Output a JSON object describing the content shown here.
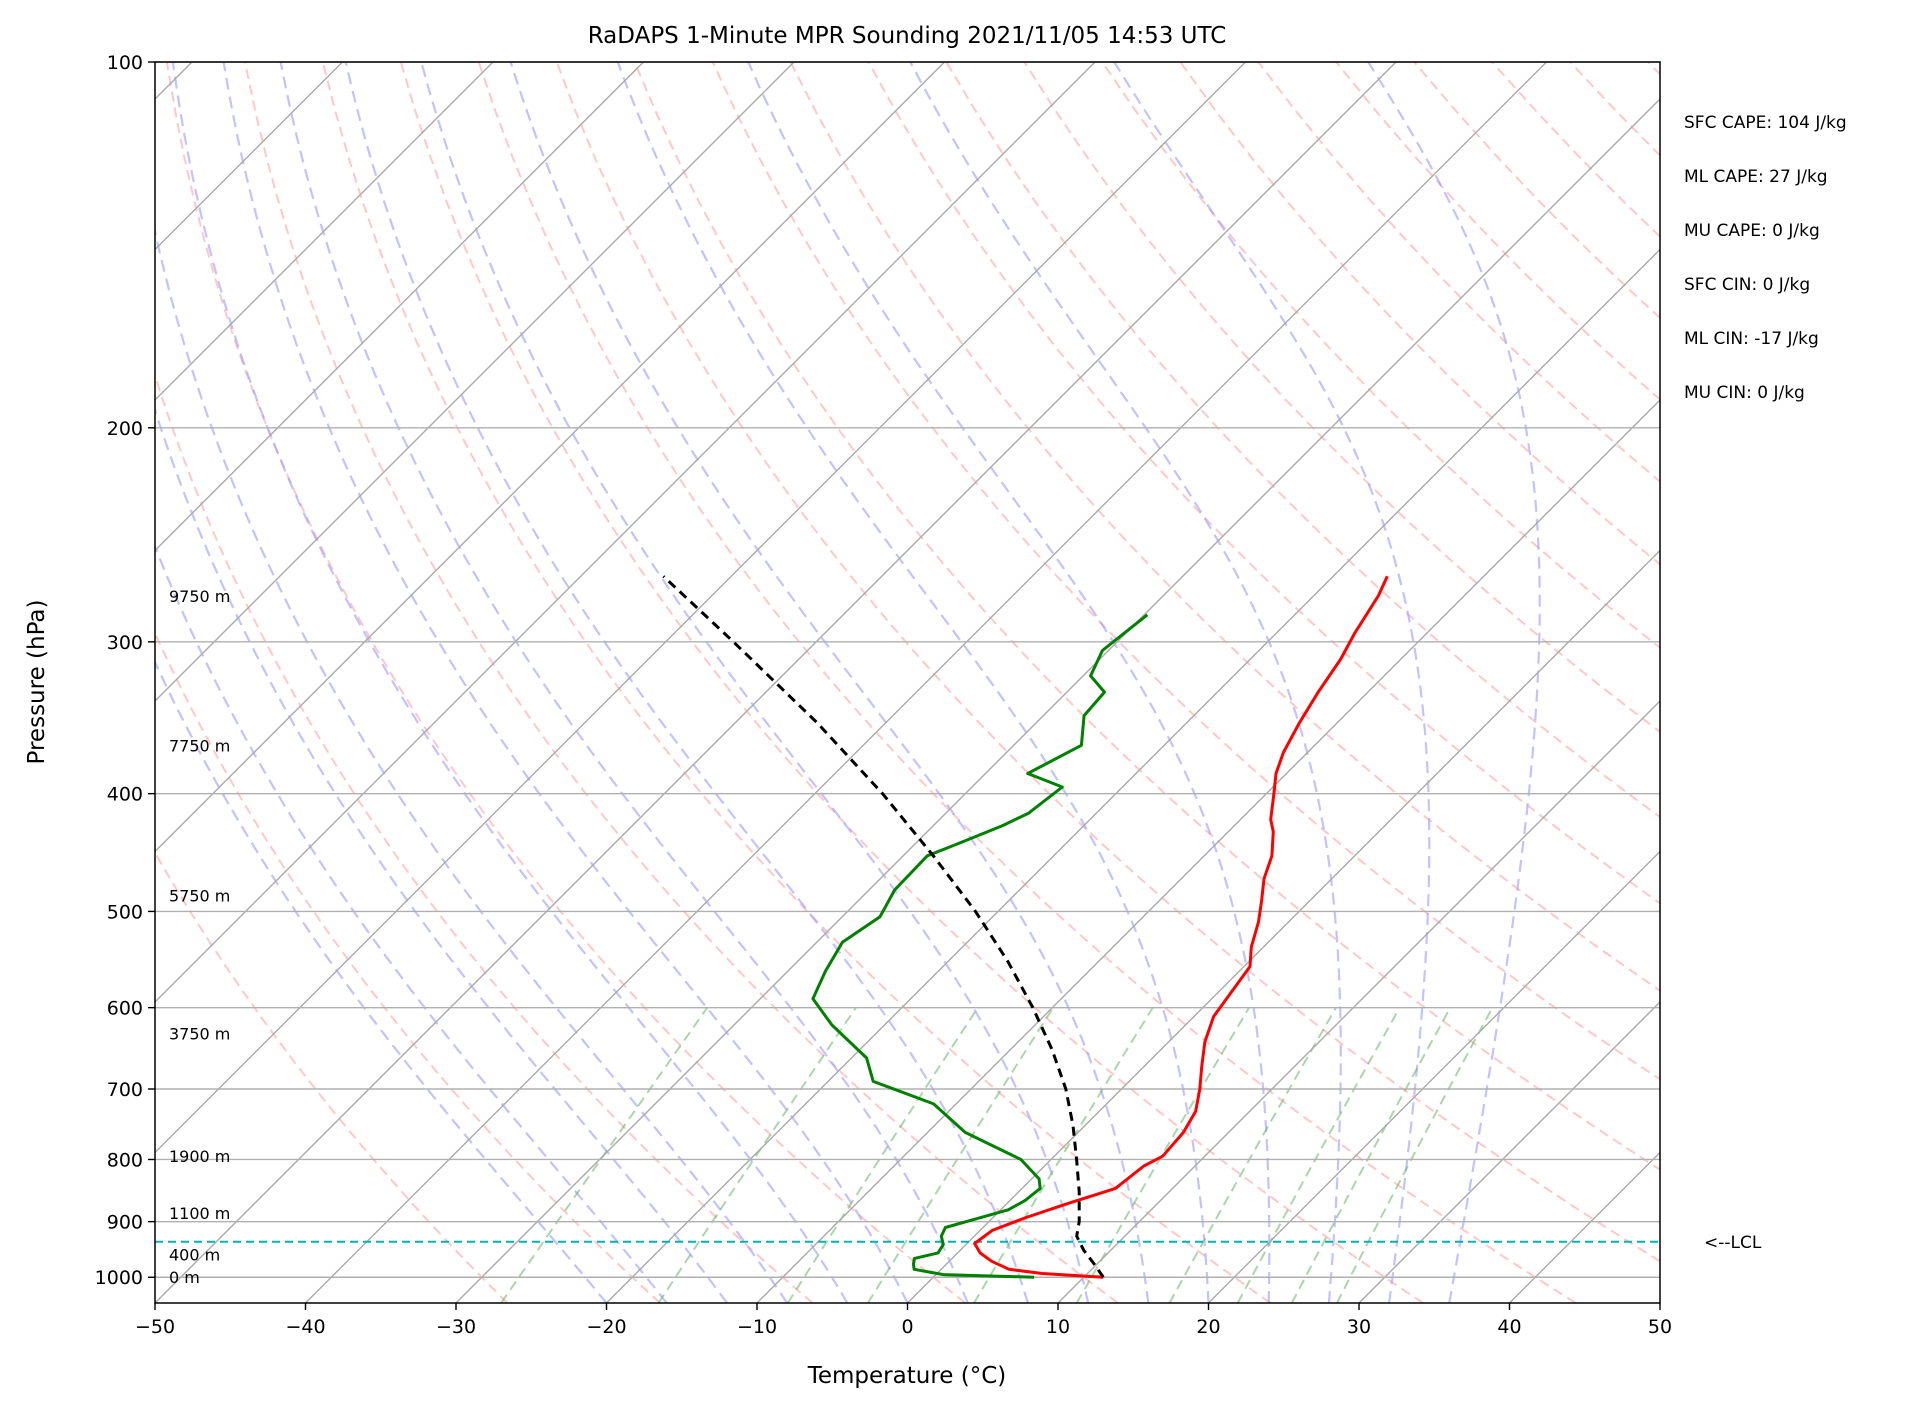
{
  "chart_data": {
    "type": "line",
    "title": "RaDAPS 1-Minute MPR Sounding 2021/11/05 14:53 UTC",
    "xlabel": "Temperature (°C)",
    "ylabel": "Pressure (hPa)",
    "xlim": [
      -50,
      50
    ],
    "ylim": [
      1050,
      100
    ],
    "yscale": "log",
    "grid": true,
    "x_ticks": [
      -50,
      -40,
      -30,
      -20,
      -10,
      0,
      10,
      20,
      30,
      40,
      50
    ],
    "x_tick_labels": [
      "−50",
      "−40",
      "−30",
      "−20",
      "−10",
      "0",
      "10",
      "20",
      "30",
      "40",
      "50"
    ],
    "y_ticks": [
      100,
      200,
      300,
      400,
      500,
      600,
      700,
      800,
      900,
      1000
    ],
    "y_tick_labels": [
      "100",
      "200",
      "300",
      "400",
      "500",
      "600",
      "700",
      "800",
      "900",
      "1000"
    ],
    "height_labels": [
      {
        "p": 275,
        "text": "9750 m"
      },
      {
        "p": 365,
        "text": "7750 m"
      },
      {
        "p": 485,
        "text": "5750 m"
      },
      {
        "p": 630,
        "text": "3750 m"
      },
      {
        "p": 795,
        "text": "1900 m"
      },
      {
        "p": 885,
        "text": "1100 m"
      },
      {
        "p": 958,
        "text": "400 m"
      },
      {
        "p": 1000,
        "text": "0 m"
      }
    ],
    "series": [
      {
        "color": "#ff0000",
        "p": [
          1000,
          993,
          985,
          970,
          955,
          938,
          915,
          893,
          870,
          845,
          810,
          795,
          760,
          730,
          700,
          670,
          640,
          610,
          585,
          555,
          535,
          510,
          490,
          470,
          450,
          430,
          420,
          400,
          385,
          370,
          350,
          330,
          310,
          295,
          275,
          265
        ],
        "t": [
          11.3,
          7.0,
          4.5,
          2.8,
          1.5,
          0.5,
          0.8,
          2.2,
          4.0,
          6.2,
          6.6,
          7.2,
          7.0,
          6.4,
          5.2,
          3.8,
          2.4,
          1.3,
          0.9,
          0.4,
          -0.8,
          -2.0,
          -3.2,
          -4.5,
          -5.5,
          -7.0,
          -8.0,
          -9.5,
          -10.7,
          -11.6,
          -12.5,
          -13.3,
          -14.0,
          -14.8,
          -15.7,
          -16.4
        ]
      },
      {
        "color": "#008000",
        "p": [
          1000,
          995,
          985,
          975,
          965,
          955,
          940,
          925,
          910,
          895,
          880,
          865,
          845,
          830,
          800,
          760,
          720,
          690,
          660,
          620,
          590,
          560,
          530,
          505,
          480,
          450,
          440,
          425,
          415,
          395,
          385,
          365,
          345,
          330,
          320,
          305,
          285
        ],
        "t": [
          6.7,
          0.5,
          -1.8,
          -2.2,
          -2.5,
          -1.3,
          -1.5,
          -2.2,
          -2.5,
          -1.0,
          0.5,
          1.0,
          1.2,
          0.5,
          -2.0,
          -7.5,
          -11.5,
          -17.0,
          -19.0,
          -23.5,
          -26.5,
          -27.5,
          -28.3,
          -27.5,
          -28.3,
          -28.4,
          -27.2,
          -25.4,
          -24.5,
          -24.0,
          -27.2,
          -25.5,
          -27.3,
          -27.5,
          -29.5,
          -30.4,
          -29.8
        ]
      },
      {
        "color": "#000000",
        "dashed": true,
        "p": [
          1000,
          975,
          950,
          925,
          900,
          850,
          800,
          750,
          700,
          650,
          600,
          550,
          500,
          450,
          400,
          350,
          300,
          265
        ],
        "t": [
          11.3,
          9.8,
          8.2,
          6.8,
          6.0,
          4.0,
          1.7,
          -0.8,
          -3.7,
          -7.2,
          -11.3,
          -16.0,
          -21.5,
          -28.0,
          -35.5,
          -44.5,
          -55.5,
          -64.5
        ]
      }
    ],
    "lcl": {
      "p": 935,
      "label": "<--LCL",
      "color": "#00b3b3"
    },
    "stats": [
      "SFC CAPE: 104 J/kg",
      "ML CAPE: 27 J/kg",
      "MU CAPE: 0 J/kg",
      "SFC CIN: 0 J/kg",
      "ML CIN: -17 J/kg",
      "MU CIN: 0 J/kg"
    ],
    "skew_isotherm_color": "#aaaaaa",
    "dry_adiabat_color": "#ff9999",
    "moist_adiabat_color": "#9999ff",
    "mixing_ratio_color": "#66b266"
  }
}
